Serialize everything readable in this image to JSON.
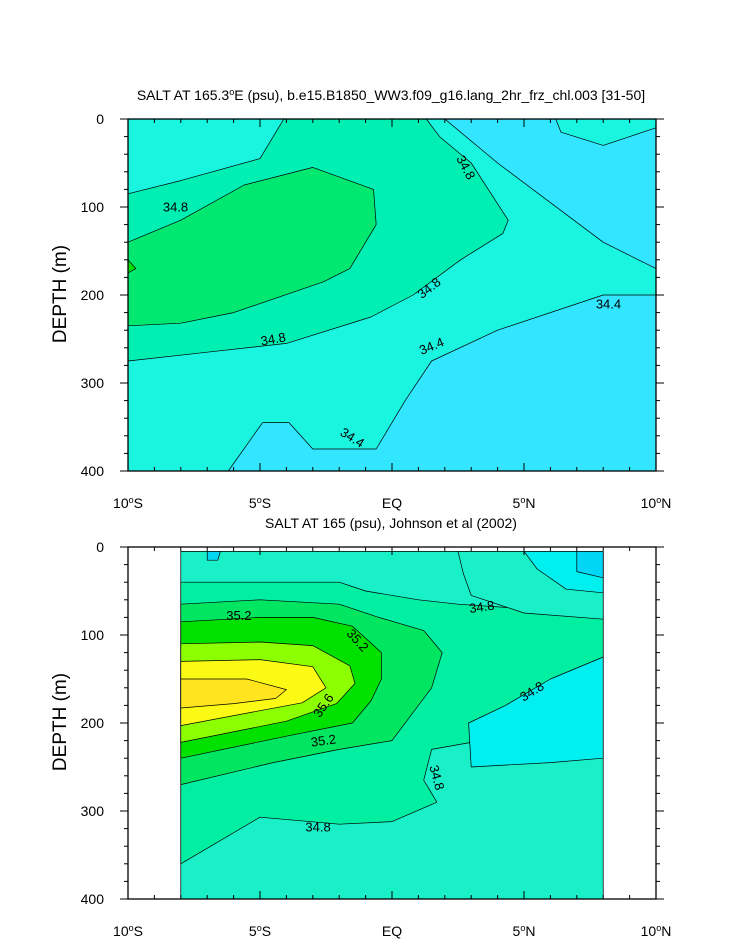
{
  "chart_data": [
    {
      "type": "contour",
      "title": "SALT AT 165.3°E (psu), b.e15.B1850_WW3.f09_g16.lang_2hr_frz_chl.003 [31-50]",
      "title_parts": [
        "SALT AT 165.3",
        "E (psu), b.e15.B1850_WW3.f09_g16.lang_2hr_frz_chl.003 [31-50]"
      ],
      "ylabel": "DEPTH (m)",
      "xlabel": "",
      "xlim": [
        -10,
        10
      ],
      "ylim": [
        0,
        400
      ],
      "y_inverted": true,
      "xticks": [
        -10,
        -5,
        0,
        5,
        10
      ],
      "yticks": [
        0,
        100,
        200,
        300,
        400
      ],
      "data_extent_x": [
        -10,
        10
      ],
      "contour_interval": 0.2,
      "bands": [
        {
          "level_min": 34.2,
          "color": "#33E6FF",
          "polygons": [
            [
              [
                -10,
                0
              ],
              [
                10,
                0
              ],
              [
                10,
                400
              ],
              [
                -10,
                400
              ]
            ]
          ]
        },
        {
          "level_min": 34.4,
          "color": "#1AF5E0",
          "polygons": [
            [
              [
                -10,
                0
              ],
              [
                10,
                0
              ],
              [
                10,
                10
              ],
              [
                8,
                30
              ],
              [
                6.4,
                15
              ],
              [
                6.2,
                0
              ]
            ],
            [
              [
                -10,
                0
              ],
              [
                -3.5,
                0
              ],
              [
                -5,
                40
              ],
              [
                -8,
                65
              ],
              [
                -10,
                70
              ]
            ],
            [
              [
                -10,
                0
              ],
              [
                -10,
                400
              ],
              [
                -6.2,
                400
              ],
              [
                -4.9,
                345
              ],
              [
                -3.9,
                345
              ],
              [
                -3,
                375
              ],
              [
                -0.6,
                375
              ],
              [
                0.5,
                320
              ],
              [
                1.5,
                275
              ],
              [
                4,
                240
              ],
              [
                8,
                200
              ],
              [
                10,
                200
              ],
              [
                10,
                170
              ],
              [
                8,
                140
              ],
              [
                4,
                50
              ],
              [
                2,
                0
              ]
            ]
          ]
        },
        {
          "level_min": 34.6,
          "color": "#00F0B4",
          "polygons": [
            [
              [
                -10,
                85
              ],
              [
                -8,
                70
              ],
              [
                -5,
                45
              ],
              [
                -4.1,
                0
              ],
              [
                1.3,
                0
              ],
              [
                1.8,
                20
              ],
              [
                3,
                50
              ],
              [
                4.4,
                115
              ],
              [
                4.2,
                130
              ],
              [
                2.6,
                160
              ],
              [
                0.8,
                200
              ],
              [
                -0.8,
                225
              ],
              [
                -4,
                255
              ],
              [
                -7,
                265
              ],
              [
                -10,
                275
              ]
            ]
          ]
        },
        {
          "level_min": 34.8,
          "color": "#00E870",
          "polygons": [
            [
              [
                -10,
                140
              ],
              [
                -8,
                115
              ],
              [
                -5.6,
                75
              ],
              [
                -3,
                55
              ],
              [
                -0.7,
                80
              ],
              [
                -0.6,
                120
              ],
              [
                -1.6,
                170
              ],
              [
                -2.6,
                185
              ],
              [
                -6,
                220
              ],
              [
                -8,
                232
              ],
              [
                -10,
                235
              ]
            ]
          ]
        },
        {
          "level_min": 35.0,
          "color": "#00E100",
          "polygons": [
            [
              [
                -10,
                160
              ],
              [
                -9.7,
                170
              ],
              [
                -10,
                175
              ]
            ]
          ]
        }
      ],
      "contour_labels": [
        {
          "value": "34.8",
          "x": -8.2,
          "y": 100,
          "angle": 0
        },
        {
          "value": "34.8",
          "x": 2.8,
          "y": 55,
          "angle": 62
        },
        {
          "value": "34.8",
          "x": 1.4,
          "y": 192,
          "angle": -38
        },
        {
          "value": "34.8",
          "x": -4.5,
          "y": 250,
          "angle": -10
        },
        {
          "value": "34.4",
          "x": 8.2,
          "y": 210,
          "angle": 0
        },
        {
          "value": "34.4",
          "x": 1.5,
          "y": 258,
          "angle": -22
        },
        {
          "value": "34.4",
          "x": -1.5,
          "y": 362,
          "angle": 32
        }
      ]
    },
    {
      "type": "contour",
      "title": "SALT AT 165 (psu), Johnson et al (2002)",
      "ylabel": "DEPTH (m)",
      "xlabel": "",
      "xlim": [
        -10,
        10
      ],
      "ylim": [
        0,
        400
      ],
      "y_inverted": true,
      "xticks": [
        -10,
        -5,
        0,
        5,
        10
      ],
      "yticks": [
        0,
        100,
        200,
        300,
        400
      ],
      "data_extent_x": [
        -8,
        8
      ],
      "contour_interval": 0.2,
      "bands": [
        {
          "level_min": 34.4,
          "color": "#00EFEF",
          "polygons": [
            [
              [
                -8,
                5
              ],
              [
                8,
                5
              ],
              [
                8,
                400
              ],
              [
                -8,
                400
              ]
            ]
          ]
        },
        {
          "level_min": 34.6,
          "color": "#1AF0C8",
          "polygons": [
            [
              [
                -8,
                5
              ],
              [
                8,
                5
              ],
              [
                8,
                400
              ],
              [
                -8,
                400
              ]
            ]
          ]
        },
        {
          "level_min": 34.8,
          "color": "#00EFA0",
          "polygons": [
            [
              [
                -8,
                40
              ],
              [
                -2,
                40
              ],
              [
                -1,
                50
              ],
              [
                1,
                60
              ],
              [
                2.5,
                65
              ],
              [
                5,
                70
              ],
              [
                8,
                75
              ],
              [
                8,
                125
              ],
              [
                5.5,
                170
              ],
              [
                4.3,
                200
              ],
              [
                3,
                222
              ],
              [
                1.5,
                230
              ],
              [
                1.2,
                265
              ],
              [
                1.7,
                290
              ],
              [
                0,
                312
              ],
              [
                -2,
                315
              ],
              [
                -5,
                307
              ],
              [
                -8,
                360
              ]
            ]
          ]
        },
        {
          "level_min": 35.0,
          "color": "#00E660",
          "polygons": [
            [
              [
                -8,
                65
              ],
              [
                -5,
                60
              ],
              [
                -2,
                65
              ],
              [
                -0.5,
                80
              ],
              [
                1.2,
                95
              ],
              [
                1.9,
                120
              ],
              [
                1.5,
                160
              ],
              [
                0.8,
                188
              ],
              [
                0,
                220
              ],
              [
                -2,
                230
              ],
              [
                -4.5,
                245
              ],
              [
                -8,
                270
              ]
            ]
          ]
        },
        {
          "level_min": 35.2,
          "color": "#00E100",
          "polygons": [
            [
              [
                -8,
                85
              ],
              [
                -5,
                80
              ],
              [
                -3,
                80
              ],
              [
                -1.5,
                90
              ],
              [
                -0.4,
                120
              ],
              [
                -0.4,
                150
              ],
              [
                -0.8,
                175
              ],
              [
                -1.5,
                200
              ],
              [
                -4,
                215
              ],
              [
                -8,
                240
              ]
            ]
          ]
        },
        {
          "level_min": 35.4,
          "color": "#8CFF00",
          "polygons": [
            [
              [
                -8,
                110
              ],
              [
                -5,
                108
              ],
              [
                -3,
                112
              ],
              [
                -1.6,
                135
              ],
              [
                -1.4,
                155
              ],
              [
                -2.1,
                178
              ],
              [
                -4,
                198
              ],
              [
                -8,
                222
              ]
            ]
          ]
        },
        {
          "level_min": 35.6,
          "color": "#FAFA14",
          "polygons": [
            [
              [
                -8,
                130
              ],
              [
                -5,
                128
              ],
              [
                -3,
                136
              ],
              [
                -2.5,
                160
              ],
              [
                -3.4,
                177
              ],
              [
                -5,
                186
              ],
              [
                -8,
                203
              ]
            ]
          ]
        },
        {
          "level_min": 35.8,
          "color": "#FFE41E",
          "polygons": [
            [
              [
                -8,
                150
              ],
              [
                -5.5,
                150
              ],
              [
                -4,
                162
              ],
              [
                -4.4,
                172
              ],
              [
                -6,
                178
              ],
              [
                -8,
                183
              ]
            ]
          ]
        },
        {
          "level_min": 34.6,
          "color": "#1AF0C8",
          "polygons": [
            [
              [
                2.5,
                5
              ],
              [
                8,
                5
              ],
              [
                8,
                82
              ],
              [
                5,
                75
              ],
              [
                3,
                55
              ],
              [
                2.7,
                30
              ]
            ]
          ]
        },
        {
          "level_min": 34.4,
          "color": "#00EFEF",
          "polygons": [
            [
              [
                5,
                5
              ],
              [
                8,
                5
              ],
              [
                8,
                52
              ],
              [
                6.6,
                48
              ],
              [
                5.5,
                25
              ]
            ],
            [
              [
                8,
                125
              ],
              [
                8,
                240
              ],
              [
                6,
                245
              ],
              [
                3,
                250
              ],
              [
                2.9,
                200
              ],
              [
                4.3,
                180
              ],
              [
                6,
                150
              ]
            ]
          ]
        },
        {
          "level_min": 34.2,
          "color": "#00D7F5",
          "polygons": [
            [
              [
                -7,
                5
              ],
              [
                -6.5,
                5
              ],
              [
                -6.6,
                15
              ],
              [
                -7,
                15
              ]
            ],
            [
              [
                7,
                5
              ],
              [
                8,
                5
              ],
              [
                8,
                35
              ],
              [
                7,
                28
              ]
            ]
          ]
        }
      ],
      "contour_labels": [
        {
          "value": "35.2",
          "x": -5.8,
          "y": 78,
          "angle": 0
        },
        {
          "value": "35.2",
          "x": -1.3,
          "y": 106,
          "angle": 48
        },
        {
          "value": "35.6",
          "x": -2.6,
          "y": 180,
          "angle": -55
        },
        {
          "value": "35.2",
          "x": -2.6,
          "y": 220,
          "angle": -8
        },
        {
          "value": "34.8",
          "x": 3.4,
          "y": 68,
          "angle": -8
        },
        {
          "value": "34.8",
          "x": 5.3,
          "y": 164,
          "angle": -32
        },
        {
          "value": "34.8",
          "x": 1.7,
          "y": 262,
          "angle": 75
        },
        {
          "value": "34.8",
          "x": -2.8,
          "y": 318,
          "angle": 0
        }
      ]
    }
  ]
}
